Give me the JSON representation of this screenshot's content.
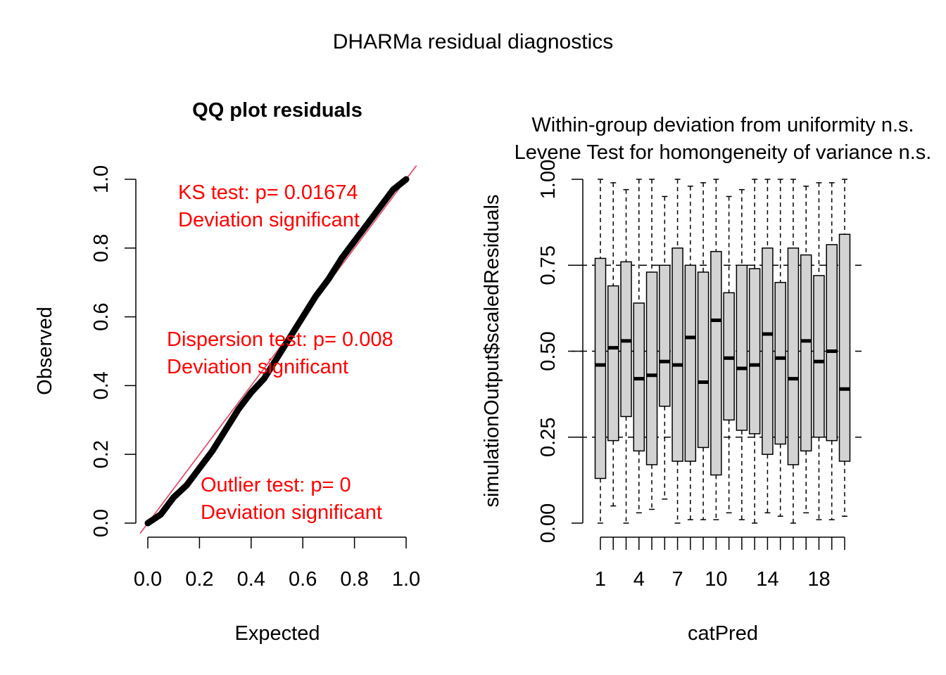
{
  "figure": {
    "title": "DHARMa residual diagnostics"
  },
  "chart_data": [
    {
      "type": "scatter",
      "title": "QQ plot residuals",
      "xlabel": "Expected",
      "ylabel": "Observed",
      "xlim": [
        0,
        1
      ],
      "ylim": [
        0,
        1
      ],
      "x_ticks": [
        "0.0",
        "0.2",
        "0.4",
        "0.6",
        "0.8",
        "1.0"
      ],
      "y_ticks": [
        "0.0",
        "0.2",
        "0.4",
        "0.6",
        "0.8",
        "1.0"
      ],
      "reference_line": {
        "slope": 1,
        "intercept": 0,
        "color": "#DF536B"
      },
      "point_color": "#000000",
      "qq_curve": {
        "x": [
          0.0,
          0.05,
          0.1,
          0.15,
          0.2,
          0.25,
          0.3,
          0.35,
          0.4,
          0.45,
          0.5,
          0.55,
          0.6,
          0.65,
          0.7,
          0.75,
          0.8,
          0.85,
          0.9,
          0.95,
          1.0
        ],
        "y": [
          0.0,
          0.025,
          0.075,
          0.11,
          0.16,
          0.21,
          0.27,
          0.33,
          0.38,
          0.42,
          0.48,
          0.54,
          0.6,
          0.66,
          0.71,
          0.77,
          0.82,
          0.87,
          0.92,
          0.97,
          1.0
        ]
      },
      "annotations": [
        {
          "lines": [
            "KS test: p= 0.01674",
            "Deviation  significant"
          ],
          "color": "#FF0000"
        },
        {
          "lines": [
            "Dispersion test: p= 0.008",
            "Deviation  significant"
          ],
          "color": "#FF0000"
        },
        {
          "lines": [
            "Outlier test: p= 0",
            "Deviation  significant"
          ],
          "color": "#FF0000"
        }
      ]
    },
    {
      "type": "boxplot",
      "title_lines": [
        "Within-group deviation from uniformity n.s.",
        "Levene Test for homongeneity of variance n.s."
      ],
      "xlabel": "catPred",
      "ylabel": "simulationOutput$scaledResiduals",
      "ylim": [
        0,
        1
      ],
      "y_ticks": [
        "0.00",
        "0.25",
        "0.50",
        "0.75",
        "1.00"
      ],
      "x_tick_labels": [
        "1",
        "4",
        "7",
        "10",
        "14",
        "18"
      ],
      "reference_lines": [
        0.25,
        0.5,
        0.75
      ],
      "box_fill": "#D3D3D3",
      "groups": [
        {
          "name": "1",
          "min": 0.0,
          "q1": 0.13,
          "median": 0.46,
          "q3": 0.77,
          "max": 1.0
        },
        {
          "name": "2",
          "min": 0.05,
          "q1": 0.24,
          "median": 0.51,
          "q3": 0.69,
          "max": 0.99
        },
        {
          "name": "3",
          "min": 0.0,
          "q1": 0.31,
          "median": 0.53,
          "q3": 0.76,
          "max": 0.97
        },
        {
          "name": "4",
          "min": 0.03,
          "q1": 0.21,
          "median": 0.42,
          "q3": 0.64,
          "max": 1.0
        },
        {
          "name": "5",
          "min": 0.04,
          "q1": 0.17,
          "median": 0.43,
          "q3": 0.73,
          "max": 1.0
        },
        {
          "name": "6",
          "min": 0.07,
          "q1": 0.34,
          "median": 0.47,
          "q3": 0.75,
          "max": 0.95
        },
        {
          "name": "7",
          "min": 0.0,
          "q1": 0.18,
          "median": 0.46,
          "q3": 0.8,
          "max": 1.0
        },
        {
          "name": "8",
          "min": 0.01,
          "q1": 0.18,
          "median": 0.54,
          "q3": 0.75,
          "max": 0.98
        },
        {
          "name": "9",
          "min": 0.01,
          "q1": 0.22,
          "median": 0.41,
          "q3": 0.73,
          "max": 0.99
        },
        {
          "name": "10",
          "min": 0.01,
          "q1": 0.14,
          "median": 0.59,
          "q3": 0.79,
          "max": 1.0
        },
        {
          "name": "11",
          "min": 0.03,
          "q1": 0.3,
          "median": 0.48,
          "q3": 0.67,
          "max": 0.95
        },
        {
          "name": "12",
          "min": 0.01,
          "q1": 0.27,
          "median": 0.45,
          "q3": 0.75,
          "max": 0.97
        },
        {
          "name": "13",
          "min": 0.0,
          "q1": 0.26,
          "median": 0.46,
          "q3": 0.74,
          "max": 1.0
        },
        {
          "name": "14",
          "min": 0.03,
          "q1": 0.2,
          "median": 0.55,
          "q3": 0.8,
          "max": 1.0
        },
        {
          "name": "15",
          "min": 0.02,
          "q1": 0.23,
          "median": 0.48,
          "q3": 0.7,
          "max": 1.0
        },
        {
          "name": "16",
          "min": 0.0,
          "q1": 0.17,
          "median": 0.42,
          "q3": 0.8,
          "max": 1.0
        },
        {
          "name": "17",
          "min": 0.03,
          "q1": 0.21,
          "median": 0.53,
          "q3": 0.78,
          "max": 0.98
        },
        {
          "name": "18",
          "min": 0.01,
          "q1": 0.25,
          "median": 0.47,
          "q3": 0.72,
          "max": 0.99
        },
        {
          "name": "19",
          "min": 0.01,
          "q1": 0.24,
          "median": 0.5,
          "q3": 0.81,
          "max": 0.99
        },
        {
          "name": "20",
          "min": 0.02,
          "q1": 0.18,
          "median": 0.39,
          "q3": 0.84,
          "max": 1.0
        }
      ]
    }
  ]
}
